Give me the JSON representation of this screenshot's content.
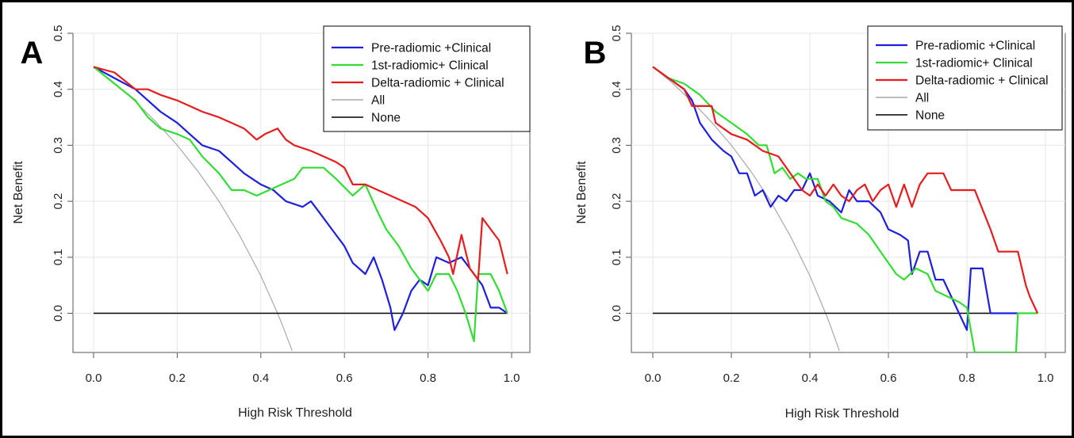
{
  "figure": {
    "frame_color": "#000000"
  },
  "chart_data": [
    {
      "panel_label": "A",
      "type": "line",
      "xlabel": "High Risk Threshold",
      "ylabel": "Net Benefit",
      "xlim": [
        0,
        1
      ],
      "ylim": [
        -0.07,
        0.5
      ],
      "xticks": [
        "0.0",
        "0.2",
        "0.4",
        "0.6",
        "0.8",
        "1.0"
      ],
      "yticks": [
        "0.0",
        "0.1",
        "0.2",
        "0.3",
        "0.4",
        "0.5"
      ],
      "grid": true,
      "legend_position": "top-right",
      "series": [
        {
          "name": "Pre-radiomic +Clinical",
          "color": "#1f1fe0",
          "points": [
            [
              0,
              0.44
            ],
            [
              0.05,
              0.42
            ],
            [
              0.1,
              0.4
            ],
            [
              0.13,
              0.38
            ],
            [
              0.16,
              0.36
            ],
            [
              0.2,
              0.34
            ],
            [
              0.23,
              0.32
            ],
            [
              0.26,
              0.3
            ],
            [
              0.3,
              0.29
            ],
            [
              0.33,
              0.27
            ],
            [
              0.36,
              0.25
            ],
            [
              0.4,
              0.23
            ],
            [
              0.43,
              0.22
            ],
            [
              0.46,
              0.2
            ],
            [
              0.5,
              0.19
            ],
            [
              0.52,
              0.2
            ],
            [
              0.54,
              0.18
            ],
            [
              0.57,
              0.15
            ],
            [
              0.6,
              0.12
            ],
            [
              0.62,
              0.09
            ],
            [
              0.65,
              0.07
            ],
            [
              0.67,
              0.1
            ],
            [
              0.69,
              0.06
            ],
            [
              0.71,
              0.01
            ],
            [
              0.72,
              -0.03
            ],
            [
              0.74,
              0.0
            ],
            [
              0.76,
              0.04
            ],
            [
              0.78,
              0.06
            ],
            [
              0.8,
              0.05
            ],
            [
              0.82,
              0.1
            ],
            [
              0.85,
              0.09
            ],
            [
              0.88,
              0.1
            ],
            [
              0.91,
              0.07
            ],
            [
              0.93,
              0.05
            ],
            [
              0.95,
              0.01
            ],
            [
              0.97,
              0.01
            ],
            [
              0.99,
              0.0
            ]
          ]
        },
        {
          "name": "1st-radiomic+ Clinical",
          "color": "#33dd33",
          "points": [
            [
              0,
              0.44
            ],
            [
              0.05,
              0.41
            ],
            [
              0.1,
              0.38
            ],
            [
              0.13,
              0.35
            ],
            [
              0.16,
              0.33
            ],
            [
              0.2,
              0.32
            ],
            [
              0.23,
              0.31
            ],
            [
              0.26,
              0.28
            ],
            [
              0.3,
              0.25
            ],
            [
              0.33,
              0.22
            ],
            [
              0.36,
              0.22
            ],
            [
              0.39,
              0.21
            ],
            [
              0.42,
              0.22
            ],
            [
              0.45,
              0.23
            ],
            [
              0.48,
              0.24
            ],
            [
              0.5,
              0.26
            ],
            [
              0.53,
              0.26
            ],
            [
              0.55,
              0.26
            ],
            [
              0.58,
              0.24
            ],
            [
              0.62,
              0.21
            ],
            [
              0.65,
              0.23
            ],
            [
              0.68,
              0.18
            ],
            [
              0.7,
              0.15
            ],
            [
              0.73,
              0.12
            ],
            [
              0.76,
              0.08
            ],
            [
              0.8,
              0.04
            ],
            [
              0.82,
              0.07
            ],
            [
              0.85,
              0.07
            ],
            [
              0.87,
              0.04
            ],
            [
              0.89,
              0.0
            ],
            [
              0.91,
              -0.05
            ],
            [
              0.92,
              0.07
            ],
            [
              0.95,
              0.07
            ],
            [
              0.97,
              0.04
            ],
            [
              0.99,
              0.0
            ]
          ]
        },
        {
          "name": "Delta-radiomic + Clinical",
          "color": "#e81c1c",
          "points": [
            [
              0,
              0.44
            ],
            [
              0.05,
              0.43
            ],
            [
              0.1,
              0.4
            ],
            [
              0.13,
              0.4
            ],
            [
              0.16,
              0.39
            ],
            [
              0.2,
              0.38
            ],
            [
              0.23,
              0.37
            ],
            [
              0.26,
              0.36
            ],
            [
              0.3,
              0.35
            ],
            [
              0.33,
              0.34
            ],
            [
              0.36,
              0.33
            ],
            [
              0.39,
              0.31
            ],
            [
              0.41,
              0.32
            ],
            [
              0.44,
              0.33
            ],
            [
              0.46,
              0.31
            ],
            [
              0.48,
              0.3
            ],
            [
              0.52,
              0.29
            ],
            [
              0.55,
              0.28
            ],
            [
              0.58,
              0.27
            ],
            [
              0.6,
              0.26
            ],
            [
              0.62,
              0.23
            ],
            [
              0.65,
              0.23
            ],
            [
              0.68,
              0.22
            ],
            [
              0.71,
              0.21
            ],
            [
              0.74,
              0.2
            ],
            [
              0.77,
              0.19
            ],
            [
              0.8,
              0.17
            ],
            [
              0.83,
              0.13
            ],
            [
              0.85,
              0.1
            ],
            [
              0.86,
              0.07
            ],
            [
              0.88,
              0.14
            ],
            [
              0.9,
              0.08
            ],
            [
              0.92,
              0.06
            ],
            [
              0.93,
              0.17
            ],
            [
              0.95,
              0.15
            ],
            [
              0.97,
              0.13
            ],
            [
              0.99,
              0.07
            ]
          ]
        },
        {
          "name": "All",
          "color": "#a9a9a9",
          "points": [
            [
              0,
              0.44
            ],
            [
              0.05,
              0.411
            ],
            [
              0.1,
              0.378
            ],
            [
              0.15,
              0.341
            ],
            [
              0.2,
              0.3
            ],
            [
              0.25,
              0.253
            ],
            [
              0.3,
              0.2
            ],
            [
              0.35,
              0.138
            ],
            [
              0.4,
              0.067
            ],
            [
              0.44,
              0.0
            ],
            [
              0.45,
              -0.018
            ],
            [
              0.47,
              -0.057
            ],
            [
              0.475,
              -0.067
            ]
          ]
        },
        {
          "name": "None",
          "color": "#000000",
          "points": [
            [
              0,
              0
            ],
            [
              0.99,
              0
            ]
          ]
        }
      ]
    },
    {
      "panel_label": "B",
      "type": "line",
      "xlabel": "High Risk Threshold",
      "ylabel": "Net Benefit",
      "xlim": [
        0,
        1
      ],
      "ylim": [
        -0.07,
        0.5
      ],
      "xticks": [
        "0.0",
        "0.2",
        "0.4",
        "0.6",
        "0.8",
        "1.0"
      ],
      "yticks": [
        "0.0",
        "0.1",
        "0.2",
        "0.3",
        "0.4",
        "0.5"
      ],
      "grid": true,
      "legend_position": "top-right",
      "series": [
        {
          "name": "Pre-radiomic +Clinical",
          "color": "#1f1fe0",
          "points": [
            [
              0,
              0.44
            ],
            [
              0.04,
              0.42
            ],
            [
              0.08,
              0.4
            ],
            [
              0.1,
              0.38
            ],
            [
              0.12,
              0.34
            ],
            [
              0.15,
              0.31
            ],
            [
              0.18,
              0.29
            ],
            [
              0.2,
              0.28
            ],
            [
              0.22,
              0.25
            ],
            [
              0.24,
              0.25
            ],
            [
              0.26,
              0.21
            ],
            [
              0.28,
              0.22
            ],
            [
              0.3,
              0.19
            ],
            [
              0.32,
              0.21
            ],
            [
              0.34,
              0.2
            ],
            [
              0.36,
              0.22
            ],
            [
              0.38,
              0.22
            ],
            [
              0.4,
              0.25
            ],
            [
              0.42,
              0.21
            ],
            [
              0.45,
              0.2
            ],
            [
              0.48,
              0.18
            ],
            [
              0.5,
              0.22
            ],
            [
              0.52,
              0.2
            ],
            [
              0.55,
              0.2
            ],
            [
              0.58,
              0.18
            ],
            [
              0.6,
              0.15
            ],
            [
              0.63,
              0.14
            ],
            [
              0.65,
              0.13
            ],
            [
              0.66,
              0.07
            ],
            [
              0.68,
              0.11
            ],
            [
              0.7,
              0.11
            ],
            [
              0.72,
              0.06
            ],
            [
              0.74,
              0.06
            ],
            [
              0.76,
              0.03
            ],
            [
              0.78,
              0.0
            ],
            [
              0.8,
              -0.03
            ],
            [
              0.81,
              0.08
            ],
            [
              0.84,
              0.08
            ],
            [
              0.86,
              0.0
            ],
            [
              0.9,
              0.0
            ],
            [
              0.93,
              0.0
            ]
          ]
        },
        {
          "name": "1st-radiomic+ Clinical",
          "color": "#33dd33",
          "points": [
            [
              0,
              0.44
            ],
            [
              0.04,
              0.42
            ],
            [
              0.08,
              0.41
            ],
            [
              0.12,
              0.39
            ],
            [
              0.16,
              0.36
            ],
            [
              0.2,
              0.34
            ],
            [
              0.24,
              0.32
            ],
            [
              0.27,
              0.3
            ],
            [
              0.29,
              0.3
            ],
            [
              0.31,
              0.25
            ],
            [
              0.33,
              0.26
            ],
            [
              0.35,
              0.24
            ],
            [
              0.37,
              0.25
            ],
            [
              0.39,
              0.24
            ],
            [
              0.42,
              0.24
            ],
            [
              0.44,
              0.2
            ],
            [
              0.46,
              0.19
            ],
            [
              0.48,
              0.17
            ],
            [
              0.52,
              0.16
            ],
            [
              0.55,
              0.14
            ],
            [
              0.58,
              0.11
            ],
            [
              0.6,
              0.09
            ],
            [
              0.62,
              0.07
            ],
            [
              0.64,
              0.06
            ],
            [
              0.67,
              0.08
            ],
            [
              0.7,
              0.07
            ],
            [
              0.72,
              0.04
            ],
            [
              0.75,
              0.03
            ],
            [
              0.78,
              0.02
            ],
            [
              0.8,
              0.01
            ],
            [
              0.82,
              -0.07
            ],
            [
              0.925,
              -0.07
            ],
            [
              0.93,
              0.0
            ],
            [
              0.98,
              0.0
            ]
          ]
        },
        {
          "name": "Delta-radiomic + Clinical",
          "color": "#e81c1c",
          "points": [
            [
              0,
              0.44
            ],
            [
              0.04,
              0.42
            ],
            [
              0.08,
              0.4
            ],
            [
              0.1,
              0.37
            ],
            [
              0.12,
              0.37
            ],
            [
              0.15,
              0.37
            ],
            [
              0.16,
              0.34
            ],
            [
              0.2,
              0.32
            ],
            [
              0.24,
              0.31
            ],
            [
              0.28,
              0.29
            ],
            [
              0.32,
              0.28
            ],
            [
              0.35,
              0.25
            ],
            [
              0.38,
              0.22
            ],
            [
              0.4,
              0.21
            ],
            [
              0.42,
              0.23
            ],
            [
              0.44,
              0.21
            ],
            [
              0.46,
              0.23
            ],
            [
              0.48,
              0.21
            ],
            [
              0.5,
              0.2
            ],
            [
              0.52,
              0.22
            ],
            [
              0.54,
              0.23
            ],
            [
              0.56,
              0.2
            ],
            [
              0.58,
              0.22
            ],
            [
              0.6,
              0.23
            ],
            [
              0.62,
              0.19
            ],
            [
              0.64,
              0.23
            ],
            [
              0.66,
              0.19
            ],
            [
              0.68,
              0.23
            ],
            [
              0.7,
              0.25
            ],
            [
              0.74,
              0.25
            ],
            [
              0.76,
              0.22
            ],
            [
              0.8,
              0.22
            ],
            [
              0.82,
              0.22
            ],
            [
              0.86,
              0.15
            ],
            [
              0.88,
              0.11
            ],
            [
              0.93,
              0.11
            ],
            [
              0.95,
              0.05
            ],
            [
              0.96,
              0.03
            ],
            [
              0.98,
              0.0
            ]
          ]
        },
        {
          "name": "All",
          "color": "#a9a9a9",
          "points": [
            [
              0,
              0.44
            ],
            [
              0.05,
              0.411
            ],
            [
              0.1,
              0.378
            ],
            [
              0.15,
              0.341
            ],
            [
              0.2,
              0.3
            ],
            [
              0.25,
              0.253
            ],
            [
              0.3,
              0.2
            ],
            [
              0.35,
              0.138
            ],
            [
              0.4,
              0.067
            ],
            [
              0.44,
              0.0
            ],
            [
              0.45,
              -0.018
            ],
            [
              0.47,
              -0.057
            ],
            [
              0.475,
              -0.067
            ]
          ]
        },
        {
          "name": "None",
          "color": "#000000",
          "points": [
            [
              0,
              0
            ],
            [
              0.98,
              0
            ]
          ]
        }
      ]
    }
  ]
}
